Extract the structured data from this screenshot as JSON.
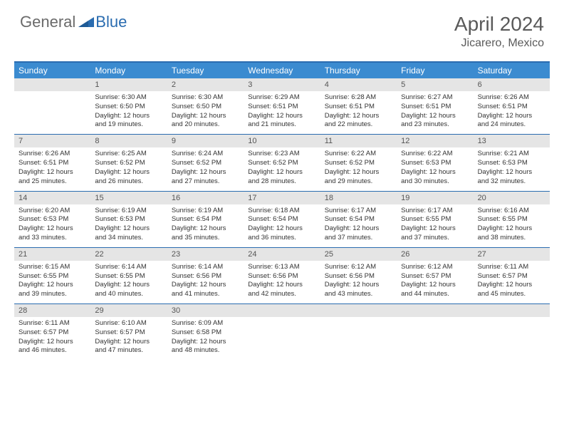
{
  "logo": {
    "part1": "General",
    "part2": "Blue"
  },
  "title": "April 2024",
  "location": "Jicarero, Mexico",
  "colors": {
    "header_bg": "#3b8bd0",
    "border": "#2a6cb0",
    "date_bg": "#e5e5e5",
    "text": "#333333",
    "title_text": "#5a5a5a"
  },
  "day_names": [
    "Sunday",
    "Monday",
    "Tuesday",
    "Wednesday",
    "Thursday",
    "Friday",
    "Saturday"
  ],
  "weeks": [
    [
      {
        "date": "",
        "lines": []
      },
      {
        "date": "1",
        "lines": [
          "Sunrise: 6:30 AM",
          "Sunset: 6:50 PM",
          "Daylight: 12 hours",
          "and 19 minutes."
        ]
      },
      {
        "date": "2",
        "lines": [
          "Sunrise: 6:30 AM",
          "Sunset: 6:50 PM",
          "Daylight: 12 hours",
          "and 20 minutes."
        ]
      },
      {
        "date": "3",
        "lines": [
          "Sunrise: 6:29 AM",
          "Sunset: 6:51 PM",
          "Daylight: 12 hours",
          "and 21 minutes."
        ]
      },
      {
        "date": "4",
        "lines": [
          "Sunrise: 6:28 AM",
          "Sunset: 6:51 PM",
          "Daylight: 12 hours",
          "and 22 minutes."
        ]
      },
      {
        "date": "5",
        "lines": [
          "Sunrise: 6:27 AM",
          "Sunset: 6:51 PM",
          "Daylight: 12 hours",
          "and 23 minutes."
        ]
      },
      {
        "date": "6",
        "lines": [
          "Sunrise: 6:26 AM",
          "Sunset: 6:51 PM",
          "Daylight: 12 hours",
          "and 24 minutes."
        ]
      }
    ],
    [
      {
        "date": "7",
        "lines": [
          "Sunrise: 6:26 AM",
          "Sunset: 6:51 PM",
          "Daylight: 12 hours",
          "and 25 minutes."
        ]
      },
      {
        "date": "8",
        "lines": [
          "Sunrise: 6:25 AM",
          "Sunset: 6:52 PM",
          "Daylight: 12 hours",
          "and 26 minutes."
        ]
      },
      {
        "date": "9",
        "lines": [
          "Sunrise: 6:24 AM",
          "Sunset: 6:52 PM",
          "Daylight: 12 hours",
          "and 27 minutes."
        ]
      },
      {
        "date": "10",
        "lines": [
          "Sunrise: 6:23 AM",
          "Sunset: 6:52 PM",
          "Daylight: 12 hours",
          "and 28 minutes."
        ]
      },
      {
        "date": "11",
        "lines": [
          "Sunrise: 6:22 AM",
          "Sunset: 6:52 PM",
          "Daylight: 12 hours",
          "and 29 minutes."
        ]
      },
      {
        "date": "12",
        "lines": [
          "Sunrise: 6:22 AM",
          "Sunset: 6:53 PM",
          "Daylight: 12 hours",
          "and 30 minutes."
        ]
      },
      {
        "date": "13",
        "lines": [
          "Sunrise: 6:21 AM",
          "Sunset: 6:53 PM",
          "Daylight: 12 hours",
          "and 32 minutes."
        ]
      }
    ],
    [
      {
        "date": "14",
        "lines": [
          "Sunrise: 6:20 AM",
          "Sunset: 6:53 PM",
          "Daylight: 12 hours",
          "and 33 minutes."
        ]
      },
      {
        "date": "15",
        "lines": [
          "Sunrise: 6:19 AM",
          "Sunset: 6:53 PM",
          "Daylight: 12 hours",
          "and 34 minutes."
        ]
      },
      {
        "date": "16",
        "lines": [
          "Sunrise: 6:19 AM",
          "Sunset: 6:54 PM",
          "Daylight: 12 hours",
          "and 35 minutes."
        ]
      },
      {
        "date": "17",
        "lines": [
          "Sunrise: 6:18 AM",
          "Sunset: 6:54 PM",
          "Daylight: 12 hours",
          "and 36 minutes."
        ]
      },
      {
        "date": "18",
        "lines": [
          "Sunrise: 6:17 AM",
          "Sunset: 6:54 PM",
          "Daylight: 12 hours",
          "and 37 minutes."
        ]
      },
      {
        "date": "19",
        "lines": [
          "Sunrise: 6:17 AM",
          "Sunset: 6:55 PM",
          "Daylight: 12 hours",
          "and 37 minutes."
        ]
      },
      {
        "date": "20",
        "lines": [
          "Sunrise: 6:16 AM",
          "Sunset: 6:55 PM",
          "Daylight: 12 hours",
          "and 38 minutes."
        ]
      }
    ],
    [
      {
        "date": "21",
        "lines": [
          "Sunrise: 6:15 AM",
          "Sunset: 6:55 PM",
          "Daylight: 12 hours",
          "and 39 minutes."
        ]
      },
      {
        "date": "22",
        "lines": [
          "Sunrise: 6:14 AM",
          "Sunset: 6:55 PM",
          "Daylight: 12 hours",
          "and 40 minutes."
        ]
      },
      {
        "date": "23",
        "lines": [
          "Sunrise: 6:14 AM",
          "Sunset: 6:56 PM",
          "Daylight: 12 hours",
          "and 41 minutes."
        ]
      },
      {
        "date": "24",
        "lines": [
          "Sunrise: 6:13 AM",
          "Sunset: 6:56 PM",
          "Daylight: 12 hours",
          "and 42 minutes."
        ]
      },
      {
        "date": "25",
        "lines": [
          "Sunrise: 6:12 AM",
          "Sunset: 6:56 PM",
          "Daylight: 12 hours",
          "and 43 minutes."
        ]
      },
      {
        "date": "26",
        "lines": [
          "Sunrise: 6:12 AM",
          "Sunset: 6:57 PM",
          "Daylight: 12 hours",
          "and 44 minutes."
        ]
      },
      {
        "date": "27",
        "lines": [
          "Sunrise: 6:11 AM",
          "Sunset: 6:57 PM",
          "Daylight: 12 hours",
          "and 45 minutes."
        ]
      }
    ],
    [
      {
        "date": "28",
        "lines": [
          "Sunrise: 6:11 AM",
          "Sunset: 6:57 PM",
          "Daylight: 12 hours",
          "and 46 minutes."
        ]
      },
      {
        "date": "29",
        "lines": [
          "Sunrise: 6:10 AM",
          "Sunset: 6:57 PM",
          "Daylight: 12 hours",
          "and 47 minutes."
        ]
      },
      {
        "date": "30",
        "lines": [
          "Sunrise: 6:09 AM",
          "Sunset: 6:58 PM",
          "Daylight: 12 hours",
          "and 48 minutes."
        ]
      },
      {
        "date": "",
        "lines": []
      },
      {
        "date": "",
        "lines": []
      },
      {
        "date": "",
        "lines": []
      },
      {
        "date": "",
        "lines": []
      }
    ]
  ]
}
